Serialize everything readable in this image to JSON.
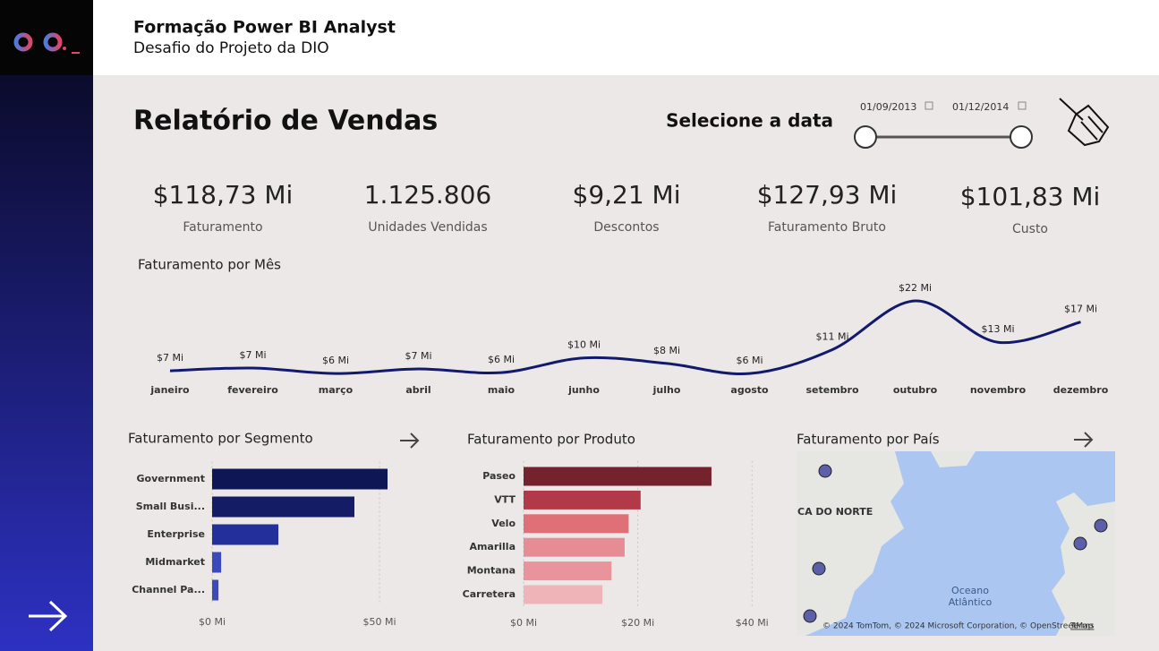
{
  "header": {
    "title": "Formação Power BI Analyst",
    "subtitle": "Desafio do Projeto da DIO"
  },
  "report_title": "Relatório de Vendas",
  "date_filter": {
    "label": "Selecione a data",
    "start": "01/09/2013",
    "end": "01/12/2014"
  },
  "kpis": [
    {
      "value": "$118,73 Mi",
      "label": "Faturamento"
    },
    {
      "value": "1.125.806",
      "label": "Unidades Vendidas"
    },
    {
      "value": "$9,21 Mi",
      "label": "Descontos"
    },
    {
      "value": "$127,93 Mi",
      "label": "Faturamento Bruto"
    },
    {
      "value": "$101,83 Mi",
      "label": "Custo"
    }
  ],
  "chart_data": [
    {
      "type": "line",
      "title": "Faturamento por Mês",
      "categories": [
        "janeiro",
        "fevereiro",
        "março",
        "abril",
        "maio",
        "junho",
        "julho",
        "agosto",
        "setembro",
        "outubro",
        "novembro",
        "dezembro"
      ],
      "values": [
        6.8,
        7.4,
        6.2,
        7.2,
        6.4,
        9.6,
        8.4,
        6.2,
        11.4,
        22,
        13,
        17.4
      ],
      "value_labels": [
        "$7 Mi",
        "$7 Mi",
        "$6 Mi",
        "$7 Mi",
        "$6 Mi",
        "$10 Mi",
        "$8 Mi",
        "$6 Mi",
        "$11 Mi",
        "$22 Mi",
        "$13 Mi",
        "$17 Mi"
      ],
      "color": "#121a6e"
    },
    {
      "type": "bar",
      "orientation": "horizontal",
      "title": "Faturamento por Segmento",
      "categories": [
        "Government",
        "Small Busi...",
        "Enterprise",
        "Midmarket",
        "Channel Pa..."
      ],
      "values": [
        52.4,
        42.5,
        19.8,
        2.7,
        1.9
      ],
      "colors": [
        "#0f1656",
        "#141c66",
        "#23309a",
        "#3a4ab8",
        "#3b4bb5"
      ],
      "xlim": [
        0,
        54
      ],
      "xticks": [
        {
          "value": 0,
          "label": "$0 Mi"
        },
        {
          "value": 50,
          "label": "$50 Mi"
        }
      ],
      "grid": true
    },
    {
      "type": "bar",
      "orientation": "horizontal",
      "title": "Faturamento por Produto",
      "categories": [
        "Paseo",
        "VTT",
        "Velo",
        "Amarilla",
        "Montana",
        "Carretera"
      ],
      "values": [
        32.9,
        20.5,
        18.4,
        17.7,
        15.4,
        13.8
      ],
      "colors": [
        "#74222c",
        "#b23a48",
        "#e07078",
        "#e68c93",
        "#e8949a",
        "#eeb4b8"
      ],
      "xlim": [
        0,
        42
      ],
      "xticks": [
        {
          "value": 0,
          "label": "$0 Mi"
        },
        {
          "value": 20,
          "label": "$20 Mi"
        },
        {
          "value": 40,
          "label": "$40 Mi"
        }
      ],
      "grid": true
    }
  ],
  "map": {
    "title": "Faturamento por País",
    "region_label": "CA DO NORTE",
    "ocean_label": [
      "Oceano",
      "Atlântico"
    ],
    "attribution": "© 2024 TomTom, © 2024 Microsoft Corporation, © OpenStreetMap",
    "terms": "Terms"
  }
}
